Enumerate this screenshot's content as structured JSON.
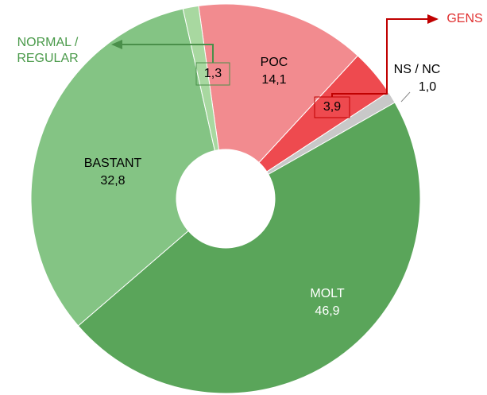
{
  "chart_data": {
    "type": "donut",
    "categories": [
      "POC",
      "GENS",
      "NS / NC",
      "MOLT",
      "BASTANT",
      "NORMAL / REGULAR"
    ],
    "values": [
      14.1,
      3.9,
      1.0,
      46.9,
      32.8,
      1.3
    ],
    "value_labels": [
      "14,1",
      "3,9",
      "1,0",
      "46,9",
      "32,8",
      "1,3"
    ],
    "colors": [
      "#f28b8f",
      "#ee4a4f",
      "#c8c8c8",
      "#5aa55a",
      "#84c484",
      "#a8d8a0"
    ]
  }
}
